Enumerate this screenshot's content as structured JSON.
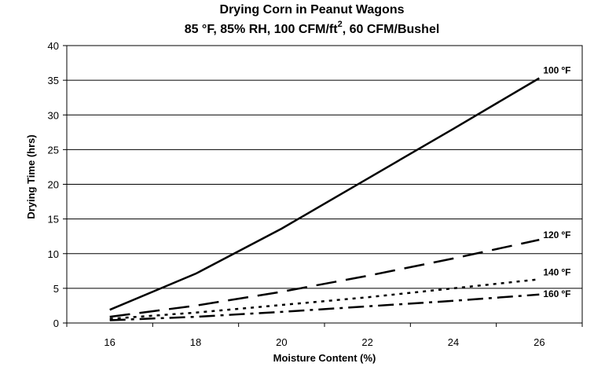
{
  "chart_data": {
    "type": "line",
    "title": "Drying Corn in Peanut Wagons",
    "subtitle": {
      "part1": "85 °F, 85% RH, 100 CFM/ft",
      "sup": "2",
      "part2": ", 60 CFM/Bushel"
    },
    "xlabel": "Moisture Content (%)",
    "ylabel": "Drying Time (hrs)",
    "xlim": [
      15,
      27
    ],
    "ylim": [
      0,
      40
    ],
    "xticks": [
      16,
      18,
      20,
      22,
      24,
      26
    ],
    "yticks": [
      0,
      5,
      10,
      15,
      20,
      25,
      30,
      35,
      40
    ],
    "grid": "horizontal",
    "legend": "inline labels at line ends",
    "series": [
      {
        "name": "100 ºF",
        "dash": "solid",
        "x": [
          16,
          18,
          20,
          22,
          24,
          26
        ],
        "y": [
          1.9,
          7.1,
          13.6,
          20.8,
          28.0,
          35.3
        ]
      },
      {
        "name": "120 ºF",
        "dash": "longdash",
        "x": [
          16,
          18,
          20,
          22,
          24,
          26
        ],
        "y": [
          0.9,
          2.5,
          4.5,
          6.8,
          9.3,
          12.0
        ]
      },
      {
        "name": "140 ºF",
        "dash": "dotted",
        "x": [
          16,
          18,
          20,
          22,
          24,
          26
        ],
        "y": [
          0.6,
          1.5,
          2.6,
          3.7,
          5.0,
          6.3
        ]
      },
      {
        "name": "160 ºF",
        "dash": "dashdot",
        "x": [
          16,
          18,
          20,
          22,
          24,
          26
        ],
        "y": [
          0.4,
          0.9,
          1.6,
          2.4,
          3.2,
          4.1
        ]
      }
    ]
  }
}
